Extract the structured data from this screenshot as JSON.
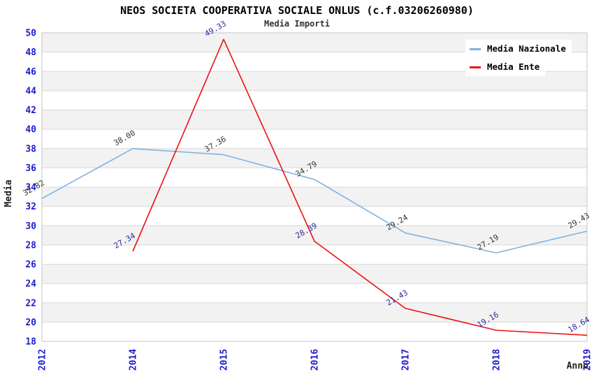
{
  "title": "NEOS SOCIETA COOPERATIVA SOCIALE ONLUS (c.f.03206260980)",
  "subtitle": "Media Importi",
  "chart_data": {
    "type": "line",
    "title": "NEOS SOCIETA COOPERATIVA SOCIALE ONLUS (c.f.03206260980)",
    "subtitle": "Media Importi",
    "categories": [
      "2012",
      "2014",
      "2015",
      "2016",
      "2017",
      "2018",
      "2019"
    ],
    "series": [
      {
        "name": "Media Nazionale",
        "color": "#7fb2e5",
        "label_color": "#333333",
        "values": [
          32.82,
          38.0,
          37.36,
          34.79,
          29.24,
          27.19,
          29.43
        ]
      },
      {
        "name": "Media Ente",
        "color": "#ef1010",
        "label_color": "#2929a3",
        "values": [
          null,
          27.34,
          49.33,
          28.39,
          21.43,
          19.16,
          18.64
        ]
      }
    ],
    "xlabel": "Anno",
    "ylabel": "Media",
    "ylim": [
      18,
      50
    ],
    "ytick_step": 2,
    "grid": true,
    "legend_position": "top-right",
    "band_colors": [
      "#f2f2f2",
      "#ffffff"
    ],
    "grid_line_color": "#d9d9d9",
    "plot_border_color": "#c5c5c5",
    "tick_color": "#1c1ccd",
    "data_label_decimals": 2
  }
}
